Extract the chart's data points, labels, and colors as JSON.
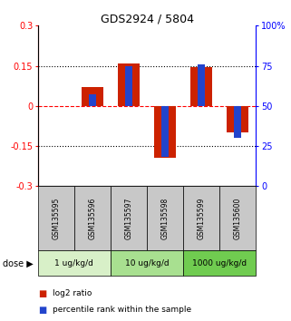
{
  "title": "GDS2924 / 5804",
  "samples": [
    "GSM135595",
    "GSM135596",
    "GSM135597",
    "GSM135598",
    "GSM135599",
    "GSM135600"
  ],
  "log2_ratio": [
    0.0,
    0.07,
    0.16,
    -0.195,
    0.145,
    -0.1
  ],
  "percentile_rank": [
    50.0,
    57.0,
    75.0,
    18.0,
    76.0,
    30.0
  ],
  "dose_groups": [
    {
      "label": "1 ug/kg/d",
      "samples": [
        0,
        1
      ],
      "color": "#d8f0c8"
    },
    {
      "label": "10 ug/kg/d",
      "samples": [
        2,
        3
      ],
      "color": "#a8e090"
    },
    {
      "label": "1000 ug/kg/d",
      "samples": [
        4,
        5
      ],
      "color": "#70cc50"
    }
  ],
  "ylim_left": [
    -0.3,
    0.3
  ],
  "ylim_right": [
    0,
    100
  ],
  "yticks_left": [
    -0.3,
    -0.15,
    0,
    0.15,
    0.3
  ],
  "yticks_right": [
    0,
    25,
    50,
    75,
    100
  ],
  "ytick_labels_left": [
    "-0.3",
    "-0.15",
    "0",
    "0.15",
    "0.3"
  ],
  "ytick_labels_right": [
    "0",
    "25",
    "50",
    "75",
    "100%"
  ],
  "hlines": [
    0.15,
    0.0,
    -0.15
  ],
  "hline_styles": [
    "dotted",
    "dashed",
    "dotted"
  ],
  "hline_colors": [
    "black",
    "red",
    "black"
  ],
  "bar_color_red": "#cc2200",
  "bar_color_blue": "#2244cc",
  "sample_bg_color": "#c8c8c8",
  "legend_red_label": "log2 ratio",
  "legend_blue_label": "percentile rank within the sample",
  "bar_width": 0.6,
  "percentile_bar_width": 0.2,
  "percentile_scale": 0.006
}
